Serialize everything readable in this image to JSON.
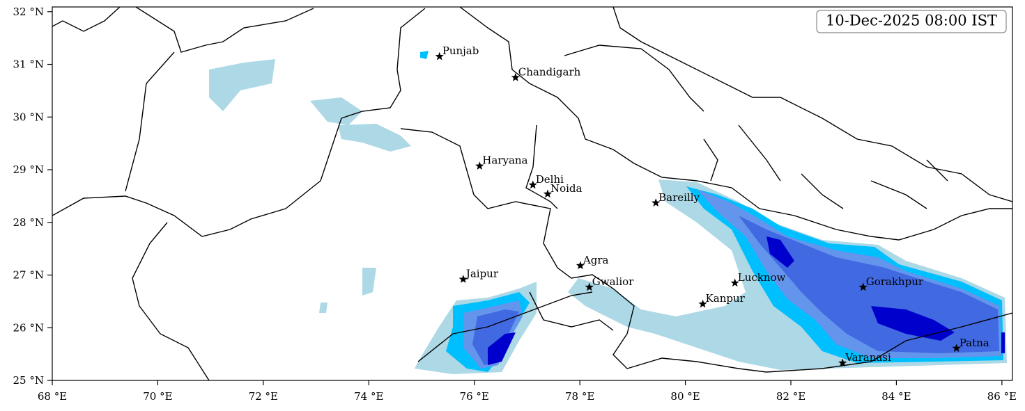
{
  "map": {
    "timestamp": "10-Dec-2025 08:00 IST",
    "xlim": [
      68,
      86.2
    ],
    "ylim": [
      25,
      32.09
    ],
    "xticks": [
      {
        "value": 68,
        "label": "68 °E"
      },
      {
        "value": 70,
        "label": "70 °E"
      },
      {
        "value": 72,
        "label": "72 °E"
      },
      {
        "value": 74,
        "label": "74 °E"
      },
      {
        "value": 76,
        "label": "76 °E"
      },
      {
        "value": 78,
        "label": "78 °E"
      },
      {
        "value": 80,
        "label": "80 °E"
      },
      {
        "value": 82,
        "label": "82 °E"
      },
      {
        "value": 84,
        "label": "84 °E"
      },
      {
        "value": 86,
        "label": "86 °E"
      }
    ],
    "yticks": [
      {
        "value": 25,
        "label": "25 °N"
      },
      {
        "value": 26,
        "label": "26 °N"
      },
      {
        "value": 27,
        "label": "27 °N"
      },
      {
        "value": 28,
        "label": "28 °N"
      },
      {
        "value": 29,
        "label": "29 °N"
      },
      {
        "value": 30,
        "label": "30 °N"
      },
      {
        "value": 31,
        "label": "31 °N"
      },
      {
        "value": 32,
        "label": "32 °N"
      }
    ],
    "cities": [
      {
        "name": "Punjab",
        "lon": 75.34,
        "lat": 31.15
      },
      {
        "name": "Chandigarh",
        "lon": 76.78,
        "lat": 30.75
      },
      {
        "name": "Haryana",
        "lon": 76.1,
        "lat": 29.07
      },
      {
        "name": "Delhi",
        "lon": 77.11,
        "lat": 28.71
      },
      {
        "name": "Noida",
        "lon": 77.39,
        "lat": 28.54
      },
      {
        "name": "Bareilly",
        "lon": 79.44,
        "lat": 28.37
      },
      {
        "name": "Agra",
        "lon": 78.01,
        "lat": 27.18
      },
      {
        "name": "Jaipur",
        "lon": 75.79,
        "lat": 26.92
      },
      {
        "name": "Gwalior",
        "lon": 78.18,
        "lat": 26.77
      },
      {
        "name": "Lucknow",
        "lon": 80.94,
        "lat": 26.85
      },
      {
        "name": "Kanpur",
        "lon": 80.33,
        "lat": 26.45
      },
      {
        "name": "Gorakhpur",
        "lon": 83.37,
        "lat": 26.77
      },
      {
        "name": "Varanasi",
        "lon": 82.98,
        "lat": 25.33
      },
      {
        "name": "Patna",
        "lon": 85.14,
        "lat": 25.61
      }
    ]
  }
}
